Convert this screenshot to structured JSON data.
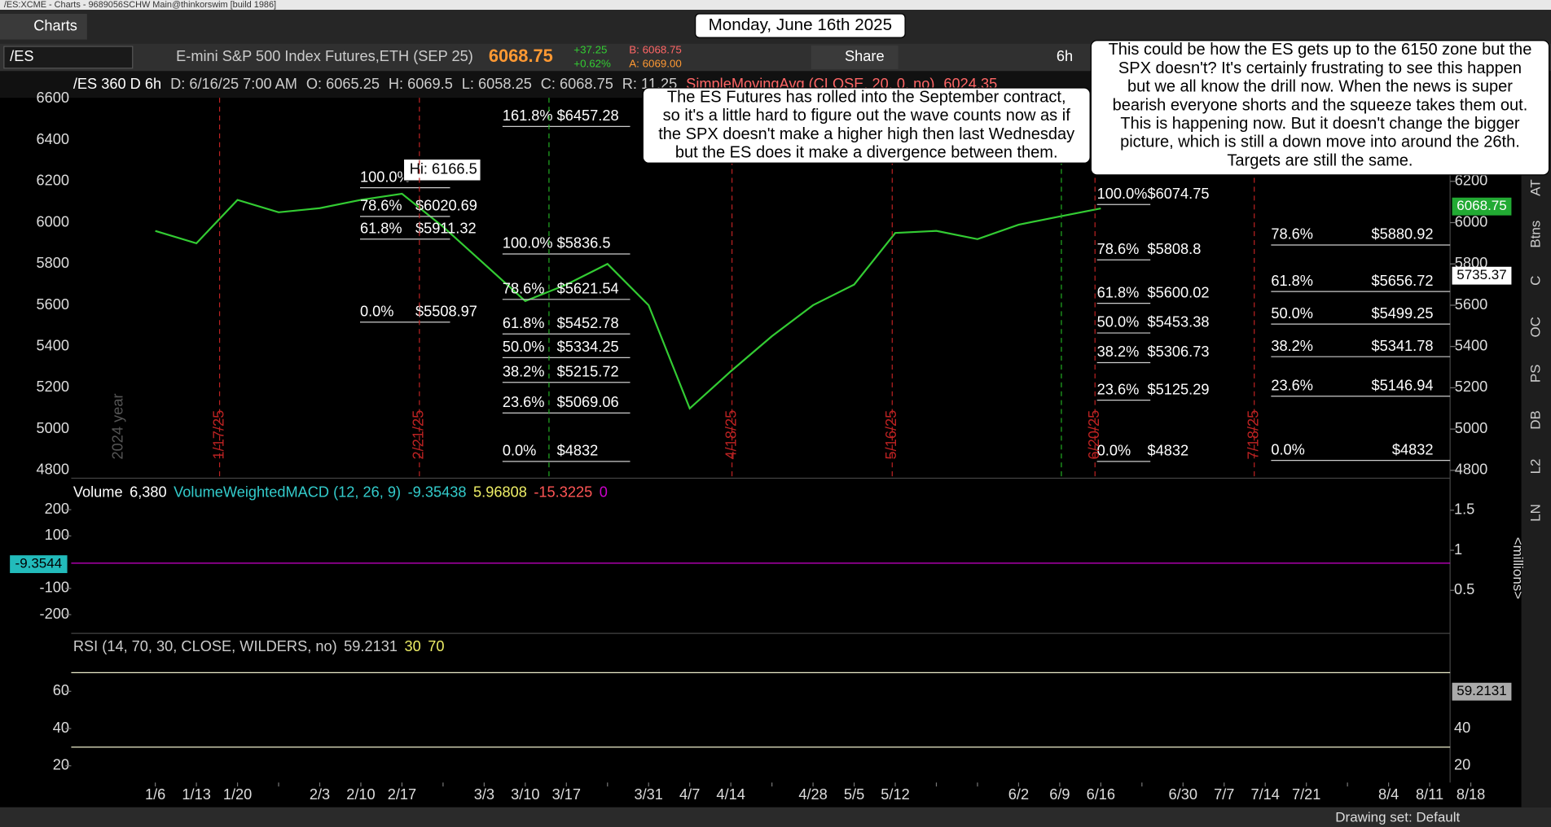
{
  "window": {
    "title": "/ES:XCME - Charts - 9689056SCHW Main@thinkorswim [build 1986]",
    "tab": "Charts"
  },
  "header_date": "Monday, June 16th 2025",
  "toolbar": {
    "symbol": "/ES",
    "description": "E-mini S&P 500 Index Futures,ETH (SEP 25)",
    "last": "6068.75",
    "change": "+37.25",
    "change_pct": "+0.62%",
    "bid": "B: 6068.75",
    "ask": "A: 6069.00",
    "share": "Share",
    "timeframe": "6h"
  },
  "chart_header": [
    "/ES 360 D 6h",
    "D: 6/16/25 7:00 AM",
    "O: 6065.25",
    "H: 6069.5",
    "L: 6058.25",
    "C: 6068.75",
    "R: 11.25",
    "SimpleMovingAvg (CLOSE, 20, 0, no)",
    "6024.35"
  ],
  "annotations": [
    [
      "The ES Futures has rolled into the September contract,",
      "so it's a little hard to figure out the wave counts now as if",
      "the SPX doesn't make a higher high then last Wednesday",
      "but the ES does it make a divergence between them."
    ],
    [
      "This could be how the ES gets up to the 6150 zone but the",
      "SPX doesn't?  It's certainly frustrating to see this happen",
      "but we all know the drill now.  When the news is super",
      "bearish everyone shorts and the squeeze takes them out.",
      "This is happening now.  But it doesn't change the bigger",
      "picture, which is still a down move into around the 26th.",
      "Targets are still the same."
    ]
  ],
  "hi_label": "Hi: 6166.5",
  "fib_levels": [
    [
      {
        "level": "100.0%"
      },
      {
        "level": "78.6%",
        "price": "$6020.69"
      },
      {
        "level": "61.8%",
        "price": "$5911.32"
      },
      {
        "level": "0.0%",
        "price": "$5508.97"
      }
    ],
    [
      {
        "level": "161.8%",
        "price": "$6457.28"
      },
      {
        "level": "100.0%",
        "price": "$5836.5"
      },
      {
        "level": "78.6%",
        "price": "$5621.54"
      },
      {
        "level": "61.8%",
        "price": "$5452.78"
      },
      {
        "level": "50.0%",
        "price": "$5334.25"
      },
      {
        "level": "38.2%",
        "price": "$5215.72"
      },
      {
        "level": "23.6%",
        "price": "$5069.06"
      },
      {
        "level": "0.0%",
        "price": "$4832"
      }
    ],
    [
      {
        "level": "100.0%",
        "price": "$6074.75"
      },
      {
        "level": "78.6%",
        "price": "$5808.8"
      },
      {
        "level": "61.8%",
        "price": "$5600.02"
      },
      {
        "level": "50.0%",
        "price": "$5453.38"
      },
      {
        "level": "38.2%",
        "price": "$5306.73"
      },
      {
        "level": "23.6%",
        "price": "$5125.29"
      },
      {
        "level": "0.0%",
        "price": "$4832"
      }
    ],
    [
      {
        "level": "78.6%",
        "price": "$5880.92"
      },
      {
        "level": "61.8%",
        "price": "$5656.72"
      },
      {
        "level": "50.0%",
        "price": "$5499.25"
      },
      {
        "level": "38.2%",
        "price": "$5341.78"
      },
      {
        "level": "23.6%",
        "price": "$5146.94"
      },
      {
        "level": "0.0%",
        "price": "$4832"
      }
    ]
  ],
  "markers": [
    "2024 year",
    "1/17/25",
    "2/21/25",
    "4/18/25",
    "5/16/25",
    "6/20/25",
    "7/18/25"
  ],
  "price_tags": [
    "6068.75",
    "5735.37"
  ],
  "volume_header": [
    "Volume",
    "6,380",
    "VolumeWeightedMACD (12, 26, 9)",
    "-9.35438",
    "5.96808",
    "-15.3225",
    "0"
  ],
  "macd_tag": "-9.3544",
  "rsi_header": [
    "RSI (14, 70, 30, CLOSE, WILDERS, no)",
    "59.2131",
    "30",
    "70"
  ],
  "rsi_tag": "59.2131",
  "sidebar": [
    "AT",
    "Btns",
    "C",
    "OC",
    "PS",
    "DB",
    "L2",
    "LN"
  ],
  "footer": "Drawing set: Default",
  "chart_data": [
    {
      "type": "line",
      "color": "#33cc33",
      "categories": [
        "1/6",
        "1/13",
        "1/20",
        null,
        "2/3",
        "2/10",
        "2/17",
        null,
        "3/3",
        "3/10",
        "3/17",
        null,
        "3/31",
        "4/7",
        "4/14",
        null,
        "4/28",
        "5/5",
        "5/12",
        null,
        null,
        "6/2",
        "6/9",
        "6/16",
        null,
        "6/30",
        "7/7",
        "7/14",
        "7/21",
        null,
        "8/4",
        "8/11",
        "8/18"
      ],
      "values": [
        5960,
        5900,
        6110,
        6050,
        6070,
        6110,
        6140,
        5980,
        5800,
        5620,
        5700,
        5800,
        5600,
        5100,
        5280,
        5450,
        5600,
        5700,
        5950,
        5960,
        5920,
        5990,
        6030,
        6068.75,
        null,
        null,
        null,
        null,
        null,
        null,
        null,
        null,
        null
      ],
      "ylim": [
        4762,
        6638
      ],
      "yticks": [
        6600,
        6400,
        6200,
        6000,
        5800,
        5600,
        5400,
        5200,
        5000,
        4800
      ]
    },
    {
      "type": "panel",
      "ylim": [
        -260,
        305
      ],
      "yticks": [
        200,
        100,
        -100,
        -200
      ],
      "y2lim": [
        0,
        1.85
      ],
      "y2ticks": [
        1.5,
        1,
        0.5
      ],
      "y2_label": "<millions>"
    },
    {
      "type": "panel",
      "ylim": [
        11,
        89
      ],
      "yticks": [
        60,
        40,
        20
      ],
      "levels": [
        70,
        30
      ]
    }
  ]
}
